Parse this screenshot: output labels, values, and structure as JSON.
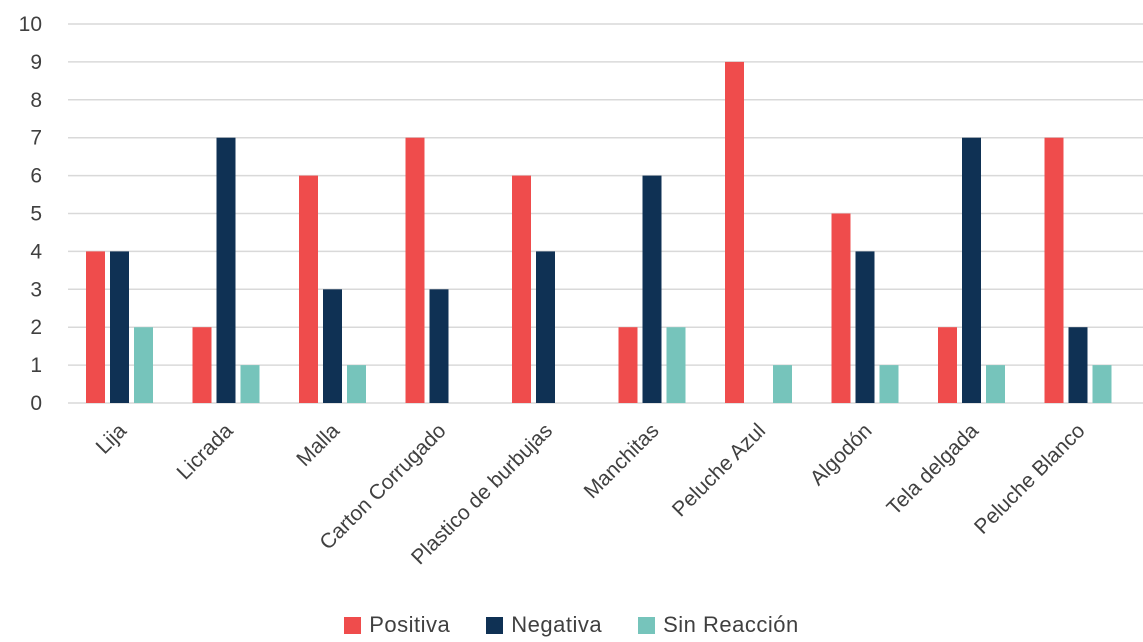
{
  "chart_data": {
    "type": "bar",
    "title": "",
    "xlabel": "",
    "ylabel": "",
    "ylim": [
      0,
      10
    ],
    "yticks": [
      0,
      1,
      2,
      3,
      4,
      5,
      6,
      7,
      8,
      9,
      10
    ],
    "grid": true,
    "legend_position": "bottom",
    "categories": [
      "Lija",
      "Licrada",
      "Malla",
      "Carton Corrugado",
      "Plastico de burbujas",
      "Manchitas",
      "Peluche Azul",
      "Algodón",
      "Tela delgada",
      "Peluche Blanco"
    ],
    "series": [
      {
        "name": "Positiva",
        "color": "#ef4c4c",
        "values": [
          4,
          2,
          6,
          7,
          6,
          2,
          9,
          5,
          2,
          7
        ]
      },
      {
        "name": "Negativa",
        "color": "#0f3154",
        "values": [
          4,
          7,
          3,
          3,
          4,
          6,
          0,
          4,
          7,
          2
        ]
      },
      {
        "name": "Sin Reacción",
        "color": "#76c4bb",
        "values": [
          2,
          1,
          1,
          0,
          0,
          2,
          1,
          1,
          1,
          1
        ]
      }
    ]
  }
}
